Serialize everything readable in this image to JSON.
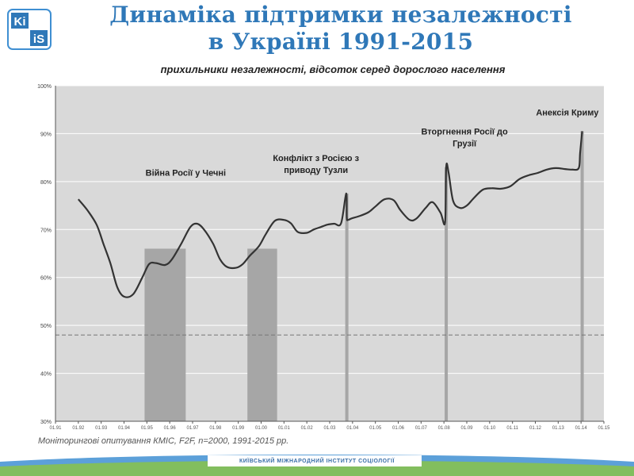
{
  "logo": {
    "text_top": "Ki",
    "text_bottom": "iS"
  },
  "title": {
    "line1": "Динаміка підтримки незалежності",
    "line2": "в Україні 1991-2015"
  },
  "subtitle": "прихильники незалежності, відсоток серед дорослого населення",
  "source": "Моніторингові опитування КМІС, F2F, n=2000, 1991-2015 рр.",
  "footer": "КИЇВСЬКИЙ МІЖНАРОДНИЙ ІНСТИТУТ СОЦІОЛОГІЇ",
  "colors": {
    "title": "#2f78b8",
    "plot_bg": "#d9d9d9",
    "line": "#333333",
    "bar": "#a6a6a6",
    "threshold": "#777777"
  },
  "chart_data": {
    "type": "line",
    "title": "прихильники незалежності, відсоток серед дорослого населення",
    "ylim": [
      30,
      100
    ],
    "xlim": [
      1991,
      2015
    ],
    "y_ticks": [
      30,
      40,
      50,
      60,
      70,
      80,
      90,
      100
    ],
    "y_tick_labels": [
      "30%",
      "40%",
      "50%",
      "60%",
      "70%",
      "80%",
      "90%",
      "100%"
    ],
    "x_ticks": [
      1991,
      1992,
      1993,
      1994,
      1995,
      1996,
      1997,
      1998,
      1999,
      2000,
      2001,
      2002,
      2003,
      2004,
      2005,
      2006,
      2007,
      2008,
      2009,
      2010,
      2011,
      2012,
      2013,
      2014,
      2015
    ],
    "x_tick_labels": [
      "01.91",
      "01.92",
      "01.93",
      "01.94",
      "01.95",
      "01.96",
      "01.97",
      "01.98",
      "01.99",
      "01.00",
      "01.01",
      "01.02",
      "01.03",
      "01.04",
      "01.05",
      "01.06",
      "01.07",
      "01.08",
      "01.09",
      "01.10",
      "01.11",
      "01.12",
      "01.13",
      "01.14",
      "01.15"
    ],
    "grid": true,
    "threshold": 48,
    "series": [
      {
        "x": [
          1992.0,
          1992.4,
          1992.8,
          1993.1,
          1993.4,
          1993.7,
          1994.0,
          1994.4,
          1994.8,
          1995.1,
          1995.4,
          1995.8,
          1996.1,
          1996.5,
          1996.9,
          1997.2,
          1997.5,
          1997.9,
          1998.2,
          1998.5,
          1998.9,
          1999.2,
          1999.5,
          1999.9,
          2000.2,
          2000.6,
          2001.0,
          2001.3,
          2001.6,
          2002.0,
          2002.3,
          2002.6,
          2002.9,
          2003.2,
          2003.5,
          2003.72,
          2003.75,
          2003.8,
          2003.95,
          2004.3,
          2004.7,
          2005.0,
          2005.4,
          2005.8,
          2006.1,
          2006.5,
          2006.8,
          2007.2,
          2007.5,
          2007.85,
          2008.05,
          2008.1,
          2008.2,
          2008.4,
          2008.7,
          2009.0,
          2009.3,
          2009.7,
          2010.1,
          2010.5,
          2010.9,
          2011.3,
          2011.7,
          2012.1,
          2012.5,
          2012.9,
          2013.3,
          2013.6,
          2013.9,
          2013.96,
          2014.05
        ],
        "y": [
          76.3,
          74,
          71,
          67,
          63,
          58,
          56,
          56.5,
          60,
          62.8,
          63,
          62.6,
          63.8,
          67,
          70.5,
          71.2,
          70,
          67,
          63.8,
          62.2,
          62,
          62.8,
          64.5,
          66.5,
          69,
          71.8,
          72,
          71.3,
          69.5,
          69.3,
          70,
          70.5,
          71,
          71.2,
          71.3,
          77.5,
          72.5,
          72,
          72.3,
          72.8,
          73.6,
          74.8,
          76.3,
          76.1,
          74,
          72,
          72.3,
          74.5,
          75.7,
          73.5,
          71.5,
          83,
          82,
          76,
          74.5,
          75,
          76.5,
          78.3,
          78.6,
          78.5,
          79,
          80.5,
          81.3,
          81.8,
          82.5,
          82.8,
          82.6,
          82.5,
          82.8,
          86,
          90.5
        ]
      }
    ],
    "shaded_bars": [
      {
        "x_start": 1994.9,
        "x_end": 1996.7,
        "top": 66
      },
      {
        "x_start": 1999.4,
        "x_end": 2000.7,
        "top": 66
      }
    ],
    "event_lines": [
      {
        "x": 2003.75,
        "top": 77.5
      },
      {
        "x": 2008.1,
        "top": 83
      },
      {
        "x": 2014.05,
        "top": 90.5
      }
    ],
    "annotations": [
      {
        "text": "Війна Росії у Чечні",
        "x": 1996.7,
        "y": 81.2
      },
      {
        "lines": [
          "Конфлікт з Росією з",
          "приводу Тузли"
        ],
        "x": 2002.4,
        "y": 84.3
      },
      {
        "lines": [
          "Вторгнення Росії до",
          "Грузії"
        ],
        "x": 2008.9,
        "y": 89.8
      },
      {
        "text": "Анексія Криму",
        "x": 2013.4,
        "y": 93.8
      }
    ]
  }
}
